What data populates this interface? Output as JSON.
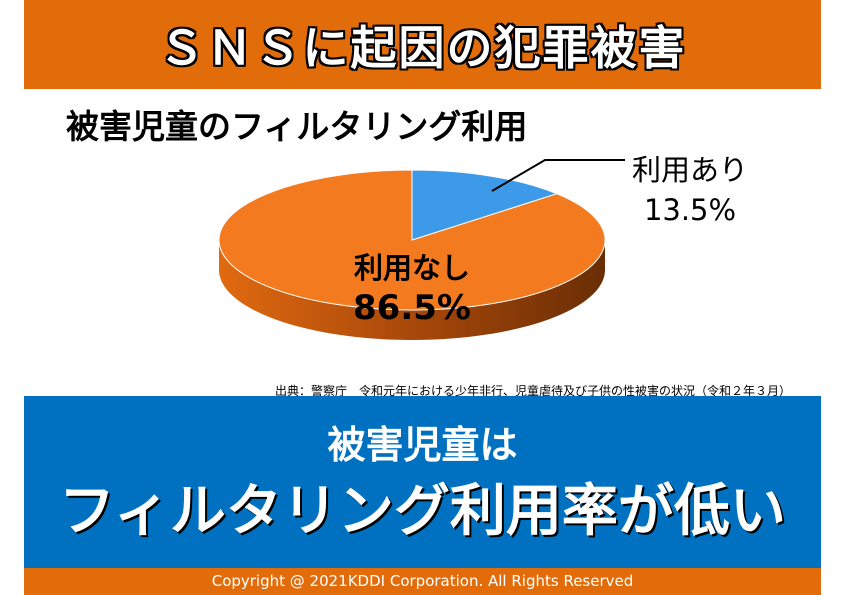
{
  "header": {
    "title": "ＳＮＳに起因の犯罪被害"
  },
  "chart_data": {
    "type": "pie",
    "title": "被害児童のフィルタリング利用",
    "slices": [
      {
        "label": "利用あり",
        "value": 13.5,
        "value_label": "13.5%",
        "color": "#3D9AE8"
      },
      {
        "label": "利用なし",
        "value": 86.5,
        "value_label": "86.5%",
        "color": "#F47A20"
      }
    ],
    "style": "3d"
  },
  "source": "出典：警察庁　令和元年における少年非行、児童虐待及び子供の性被害の状況（令和２年３月）",
  "message": {
    "line1": "被害児童は",
    "line2": "フィルタリング利用率が低い"
  },
  "footer": {
    "copyright": "Copyright @ 2021KDDI Corporation. All Rights Reserved"
  }
}
